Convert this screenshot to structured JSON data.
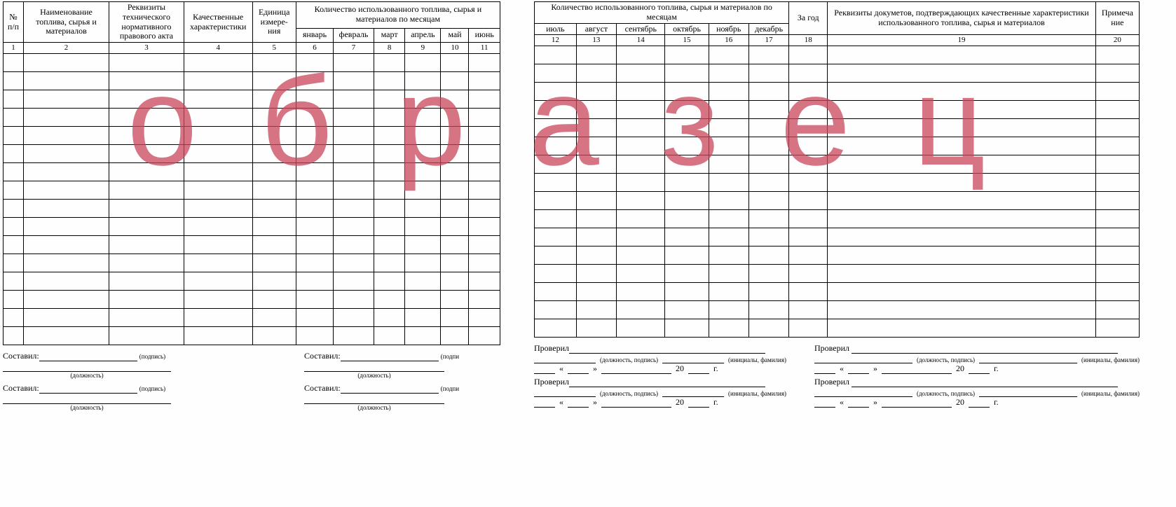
{
  "watermark": "образец",
  "left": {
    "headers": {
      "col1": "№ п/п",
      "col2": "Наименование топлива, сырья и материалов",
      "col3": "Реквизиты технического нормативного правового акта",
      "col4": "Качественные характеристики",
      "col5": "Единица измере-ния",
      "col_group": "Количество использованного топлива, сырья и материалов по месяцам",
      "m1": "январь",
      "m2": "февраль",
      "m3": "март",
      "m4": "апрель",
      "m5": "май",
      "m6": "июнь"
    },
    "nums": [
      "1",
      "2",
      "3",
      "4",
      "5",
      "6",
      "7",
      "8",
      "9",
      "10",
      "11"
    ],
    "empty_rows": 16,
    "sig": {
      "compiled": "Составил:",
      "signature": "(подпись)",
      "position": "(должность)"
    }
  },
  "right": {
    "headers": {
      "col_group": "Количество использованного топлива, сырья и материалов по месяцам",
      "m7": "июль",
      "m8": "август",
      "m9": "сентябрь",
      "m10": "октябрь",
      "m11": "ноябрь",
      "m12": "декабрь",
      "col_year": "За год",
      "col_docs": "Реквизиты докуметов, подтверждающих качественные характеристики использованного топлива, сырья и материалов",
      "col_note": "Примеча ние"
    },
    "nums": [
      "12",
      "13",
      "14",
      "15",
      "16",
      "17",
      "18",
      "19",
      "20"
    ],
    "empty_rows": 16,
    "sig": {
      "checked": "Проверил",
      "pos_sig": "(должность, подпись)",
      "initials": "(инициалы, фамилия)",
      "date_prefix": "«",
      "date_mid": "»",
      "year_20": "20",
      "year_suffix": "г."
    }
  },
  "style": {
    "border_color": "#000000",
    "watermark_color": "rgba(200,70,90,0.75)",
    "font": "Times New Roman"
  }
}
